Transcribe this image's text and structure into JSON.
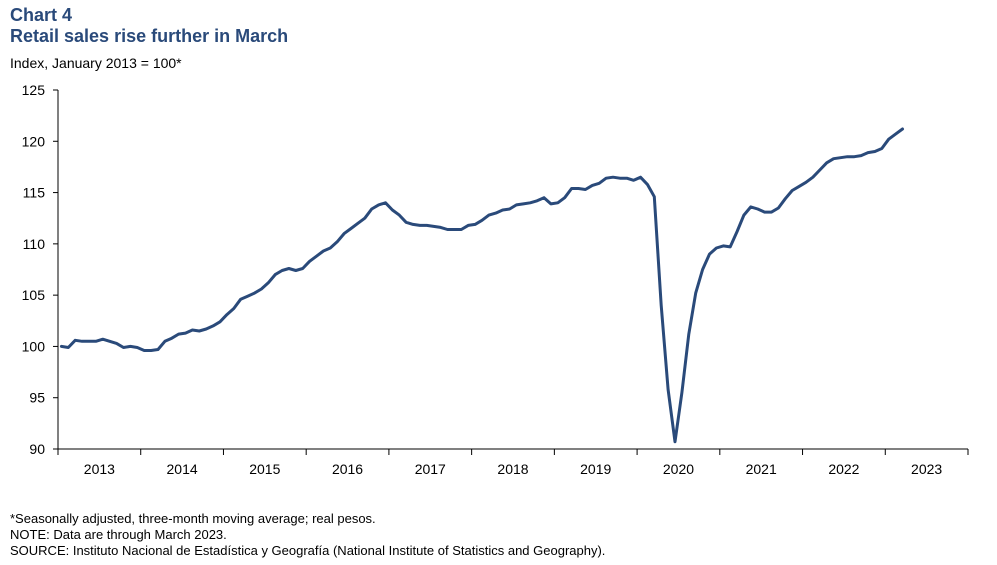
{
  "header": {
    "chart_label": "Chart 4",
    "title": "Retail sales rise further in March",
    "subtitle": "Index, January 2013 = 100*"
  },
  "notes": [
    "*Seasonally adjusted, three-month moving average; real pesos.",
    "NOTE: Data are through March 2023.",
    "SOURCE: Instituto Nacional de Estadística y Geografía (National Institute of Statistics and Geography)."
  ],
  "colors": {
    "line": "#2a4a7a",
    "axis": "#000000"
  },
  "chart_data": {
    "type": "line",
    "title": "Retail sales rise further in March",
    "ylabel": "Index, January 2013 = 100*",
    "ylim": [
      90,
      125
    ],
    "yticks": [
      90,
      95,
      100,
      105,
      110,
      115,
      120,
      125
    ],
    "xlim": [
      "2013-01",
      "2023-12"
    ],
    "xtick_labels": [
      "2013",
      "2014",
      "2015",
      "2016",
      "2017",
      "2018",
      "2019",
      "2020",
      "2021",
      "2022",
      "2023"
    ],
    "grid": false,
    "series": [
      {
        "x_start": "2013-01",
        "frequency": "monthly",
        "values": [
          100.0,
          99.9,
          100.6,
          100.5,
          100.5,
          100.5,
          100.7,
          100.5,
          100.3,
          99.9,
          100.0,
          99.9,
          99.6,
          99.6,
          99.7,
          100.5,
          100.8,
          101.2,
          101.3,
          101.6,
          101.5,
          101.7,
          102.0,
          102.4,
          103.1,
          103.7,
          104.6,
          104.9,
          105.2,
          105.6,
          106.2,
          107.0,
          107.4,
          107.6,
          107.4,
          107.6,
          108.3,
          108.8,
          109.3,
          109.6,
          110.2,
          111.0,
          111.5,
          112.0,
          112.5,
          113.4,
          113.8,
          114.0,
          113.3,
          112.8,
          112.1,
          111.9,
          111.8,
          111.8,
          111.7,
          111.6,
          111.4,
          111.4,
          111.4,
          111.8,
          111.9,
          112.3,
          112.8,
          113.0,
          113.3,
          113.4,
          113.8,
          113.9,
          114.0,
          114.2,
          114.5,
          113.9,
          114.0,
          114.5,
          115.4,
          115.4,
          115.3,
          115.7,
          115.9,
          116.4,
          116.5,
          116.4,
          116.4,
          116.2,
          116.5,
          115.8,
          114.6,
          104.0,
          95.8,
          90.7,
          95.5,
          101.2,
          105.2,
          107.5,
          109.0,
          109.6,
          109.8,
          109.7,
          111.2,
          112.8,
          113.6,
          113.4,
          113.1,
          113.1,
          113.5,
          114.4,
          115.2,
          115.6,
          116.0,
          116.5,
          117.2,
          117.9,
          118.3,
          118.4,
          118.5,
          118.5,
          118.6,
          118.9,
          119.0,
          119.3,
          120.2,
          120.7,
          121.2
        ]
      }
    ]
  }
}
